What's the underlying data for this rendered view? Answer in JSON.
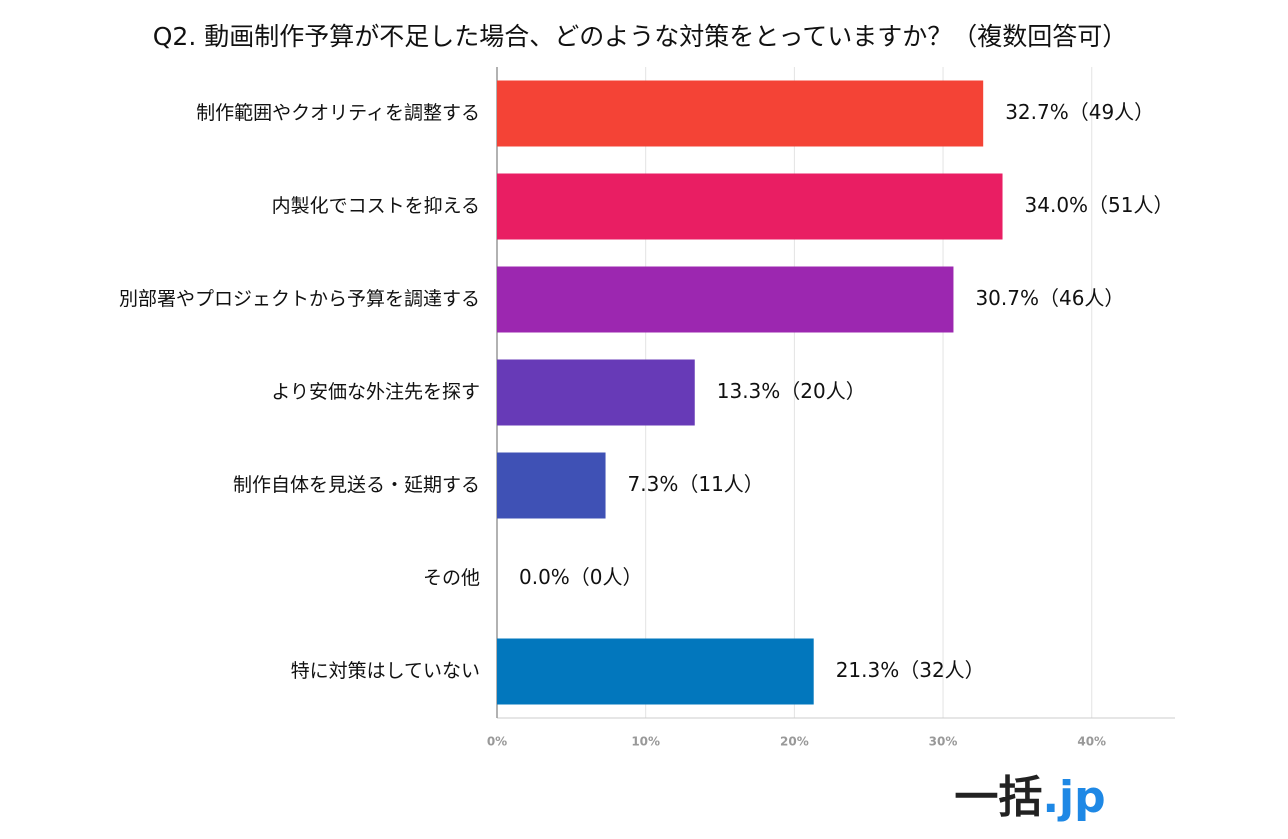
{
  "chart_data": {
    "type": "bar",
    "orientation": "horizontal",
    "title": "Q2. 動画制作予算が不足した場合、どのような対策をとっていますか？（複数回答可）",
    "categories": [
      "制作範囲やクオリティを調整する",
      "内製化でコストを抑える",
      "別部署やプロジェクトから予算を調達する",
      "より安価な外注先を探す",
      "制作自体を見送る・延期する",
      "その他",
      "特に対策はしていない"
    ],
    "values": [
      32.7,
      34.0,
      30.7,
      13.3,
      7.3,
      0.0,
      21.3
    ],
    "value_labels": [
      "32.7%（49人）",
      "34.0%（51人）",
      "30.7%（46人）",
      "13.3%（20人）",
      "7.3%（11人）",
      "0.0%（0人）",
      "21.3%（32人）"
    ],
    "colors": [
      "#f44336",
      "#e91e63",
      "#9c27b0",
      "#673ab7",
      "#3f51b5",
      "#2196f3",
      "#0277bd"
    ],
    "xlim": [
      0,
      45.6
    ],
    "xticks": [
      {
        "value": 0,
        "label": "0%"
      },
      {
        "value": 10,
        "label": "10%"
      },
      {
        "value": 20,
        "label": "20%"
      },
      {
        "value": 30,
        "label": "30%"
      },
      {
        "value": 40,
        "label": "40%"
      }
    ],
    "grid": true
  },
  "logo": {
    "main": "一括",
    "suffix": ".jp"
  }
}
